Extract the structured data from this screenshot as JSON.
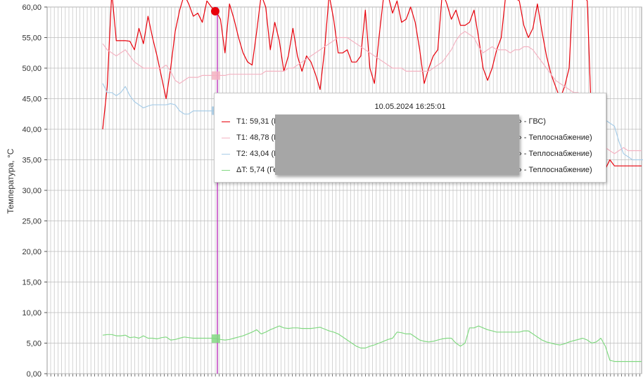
{
  "chart_data": {
    "type": "line",
    "ylabel": "Температура, °С",
    "ylim": [
      0,
      60
    ],
    "yticks": [
      "0,00",
      "5,00",
      "10,00",
      "15,00",
      "20,00",
      "25,00",
      "30,00",
      "35,00",
      "40,00",
      "45,00",
      "50,00",
      "55,00",
      "60,00"
    ],
    "grid": true,
    "x_points": 120,
    "cursor_index": 25,
    "series": [
      {
        "color": "#e8000b",
        "values": [
          40.0,
          47.0,
          62.5,
          54.5,
          54.5,
          54.5,
          54.4,
          53.0,
          56.5,
          54.0,
          58.5,
          55.0,
          52.0,
          48.5,
          45.0,
          50.0,
          56.0,
          59.5,
          62.0,
          60.5,
          58.5,
          59.0,
          57.5,
          61.0,
          60.0,
          59.31,
          58.0,
          52.5,
          60.5,
          58.0,
          55.0,
          52.5,
          51.0,
          50.5,
          56.0,
          62.0,
          60.0,
          53.0,
          57.5,
          54.5,
          49.5,
          52.0,
          56.5,
          52.0,
          49.5,
          52.0,
          51.0,
          49.0,
          46.5,
          53.0,
          62.0,
          58.0,
          52.5,
          52.5,
          53.0,
          51.0,
          51.0,
          52.0,
          59.5,
          50.0,
          47.5,
          55.0,
          61.5,
          62.0,
          59.0,
          61.0,
          57.5,
          58.0,
          60.0,
          57.5,
          53.0,
          47.5,
          50.0,
          52.0,
          53.0,
          62.5,
          60.5,
          58.0,
          59.5,
          57.0,
          57.0,
          57.5,
          59.5,
          55.0,
          50.0,
          48.0,
          50.0,
          53.0,
          55.0,
          62.0,
          63.5,
          61.5,
          61.0,
          57.0,
          55.0,
          56.5,
          60.5,
          56.0,
          52.0,
          49.0,
          47.0,
          45.0,
          47.0,
          50.0,
          64.5,
          63.0,
          62.0,
          61.0,
          40.0,
          36.0,
          35.0,
          33.5,
          35.0,
          34.0,
          34.0,
          34.0,
          34.0,
          34.0,
          34.0,
          34.0
        ]
      },
      {
        "color": "#f4b3c2",
        "values": [
          54.0,
          53.0,
          52.5,
          52.0,
          52.5,
          53.0,
          52.0,
          51.0,
          50.5,
          50.0,
          50.0,
          50.0,
          50.0,
          50.0,
          50.5,
          49.5,
          48.0,
          47.5,
          48.0,
          48.5,
          48.5,
          48.5,
          48.8,
          48.8,
          48.8,
          48.78,
          48.8,
          48.8,
          49.0,
          49.0,
          49.0,
          49.0,
          49.0,
          49.0,
          49.0,
          49.0,
          49.5,
          49.5,
          49.5,
          49.5,
          49.5,
          50.0,
          50.0,
          50.5,
          51.0,
          51.5,
          52.0,
          52.5,
          53.0,
          53.5,
          54.0,
          54.5,
          55.0,
          55.0,
          55.0,
          54.5,
          54.0,
          53.5,
          53.0,
          52.5,
          52.0,
          51.5,
          51.0,
          50.5,
          50.0,
          50.0,
          50.0,
          49.5,
          49.5,
          49.5,
          49.5,
          49.5,
          49.5,
          50.0,
          50.5,
          51.0,
          52.0,
          53.0,
          54.5,
          55.5,
          56.0,
          55.5,
          55.0,
          53.5,
          52.5,
          53.0,
          53.5,
          53.0,
          53.0,
          53.0,
          52.5,
          53.0,
          53.0,
          53.5,
          53.5,
          53.0,
          52.0,
          51.0,
          50.0,
          49.0,
          48.0,
          47.5,
          47.0,
          46.5,
          46.0,
          46.0,
          45.0,
          43.0,
          40.0,
          38.5,
          37.5,
          37.0,
          36.5,
          36.0,
          36.5,
          37.0,
          36.5,
          36.5,
          36.5,
          36.5
        ]
      },
      {
        "color": "#a8cde8",
        "values": [
          47.5,
          46.0,
          46.0,
          45.5,
          46.0,
          47.0,
          45.5,
          44.5,
          44.0,
          43.5,
          43.8,
          44.0,
          44.0,
          44.0,
          44.0,
          44.2,
          44.0,
          43.0,
          42.5,
          42.5,
          43.0,
          43.0,
          43.0,
          43.0,
          43.0,
          43.04,
          43.0,
          43.0,
          43.0,
          43.0,
          43.0,
          43.0,
          43.0,
          43.0,
          43.0,
          43.0,
          43.0,
          43.0,
          43.0,
          43.0,
          43.0,
          43.0,
          43.0,
          43.0,
          43.0,
          43.0,
          43.0,
          43.0,
          43.0,
          43.0,
          43.0,
          43.0,
          43.0,
          43.0,
          43.0,
          43.0,
          43.0,
          43.0,
          43.0,
          43.0,
          43.0,
          43.0,
          43.0,
          43.0,
          43.0,
          43.0,
          43.0,
          43.0,
          43.0,
          43.0,
          43.0,
          43.0,
          43.0,
          43.0,
          43.0,
          43.0,
          43.0,
          43.0,
          43.0,
          43.0,
          43.0,
          43.0,
          43.0,
          43.0,
          43.0,
          43.0,
          43.0,
          43.0,
          43.0,
          43.0,
          43.0,
          43.0,
          43.0,
          43.0,
          43.0,
          43.0,
          43.0,
          43.0,
          43.0,
          43.0,
          43.0,
          43.0,
          43.0,
          43.0,
          43.0,
          43.0,
          43.0,
          43.0,
          43.0,
          42.5,
          42.0,
          41.5,
          41.0,
          40.5,
          38.0,
          36.0,
          35.5,
          35.0,
          35.0,
          35.0,
          35.0
        ]
      },
      {
        "color": "#82d982",
        "values": [
          6.3,
          6.4,
          6.4,
          6.2,
          6.2,
          6.3,
          5.9,
          6.0,
          5.8,
          6.2,
          5.8,
          5.8,
          5.7,
          5.9,
          6.0,
          5.5,
          5.6,
          5.8,
          6.0,
          5.9,
          5.8,
          5.8,
          5.8,
          5.8,
          5.8,
          5.74,
          5.6,
          5.5,
          5.6,
          5.8,
          6.0,
          6.2,
          6.5,
          6.8,
          7.2,
          6.5,
          6.8,
          7.2,
          7.5,
          7.8,
          7.5,
          7.4,
          7.5,
          7.5,
          7.4,
          7.4,
          7.4,
          7.5,
          7.6,
          7.3,
          7.0,
          6.8,
          6.5,
          6.0,
          5.5,
          5.0,
          4.5,
          4.2,
          4.2,
          4.5,
          4.7,
          5.0,
          5.3,
          5.6,
          5.8,
          6.8,
          6.7,
          6.5,
          6.5,
          6.0,
          5.5,
          5.3,
          5.2,
          5.3,
          5.5,
          5.7,
          5.8,
          5.8,
          5.0,
          4.5,
          5.0,
          7.5,
          7.5,
          7.8,
          7.5,
          7.2,
          7.0,
          6.8,
          6.8,
          6.8,
          6.8,
          6.8,
          6.8,
          7.0,
          7.0,
          6.5,
          6.0,
          5.5,
          5.2,
          5.0,
          4.8,
          4.7,
          4.9,
          5.2,
          5.4,
          5.6,
          5.8,
          5.5,
          5.0,
          5.2,
          5.8,
          4.5,
          2.2,
          2.0,
          2.0,
          2.0,
          2.0,
          2.0,
          2.0,
          2.0
        ]
      }
    ],
    "cursor_color": "#c040c0",
    "marker_color": "#e8000b"
  },
  "tooltip": {
    "title": "10.05.2024 16:25:01",
    "rows": [
      {
        "label": "T1: 59,31 (Г",
        "tail": "› - ГВС)",
        "color": "#e8000b"
      },
      {
        "label": "T1: 48,78 (Г",
        "tail": "› - Теплоснабжение)",
        "color": "#f4b3c2"
      },
      {
        "label": "T2: 43,04 (Г",
        "tail": "› - Теплоснабжение)",
        "color": "#a8cde8"
      },
      {
        "label": "ΔT: 5,74 (Ге",
        "tail": "› - Теплоснабжение)",
        "color": "#82d982"
      }
    ]
  }
}
